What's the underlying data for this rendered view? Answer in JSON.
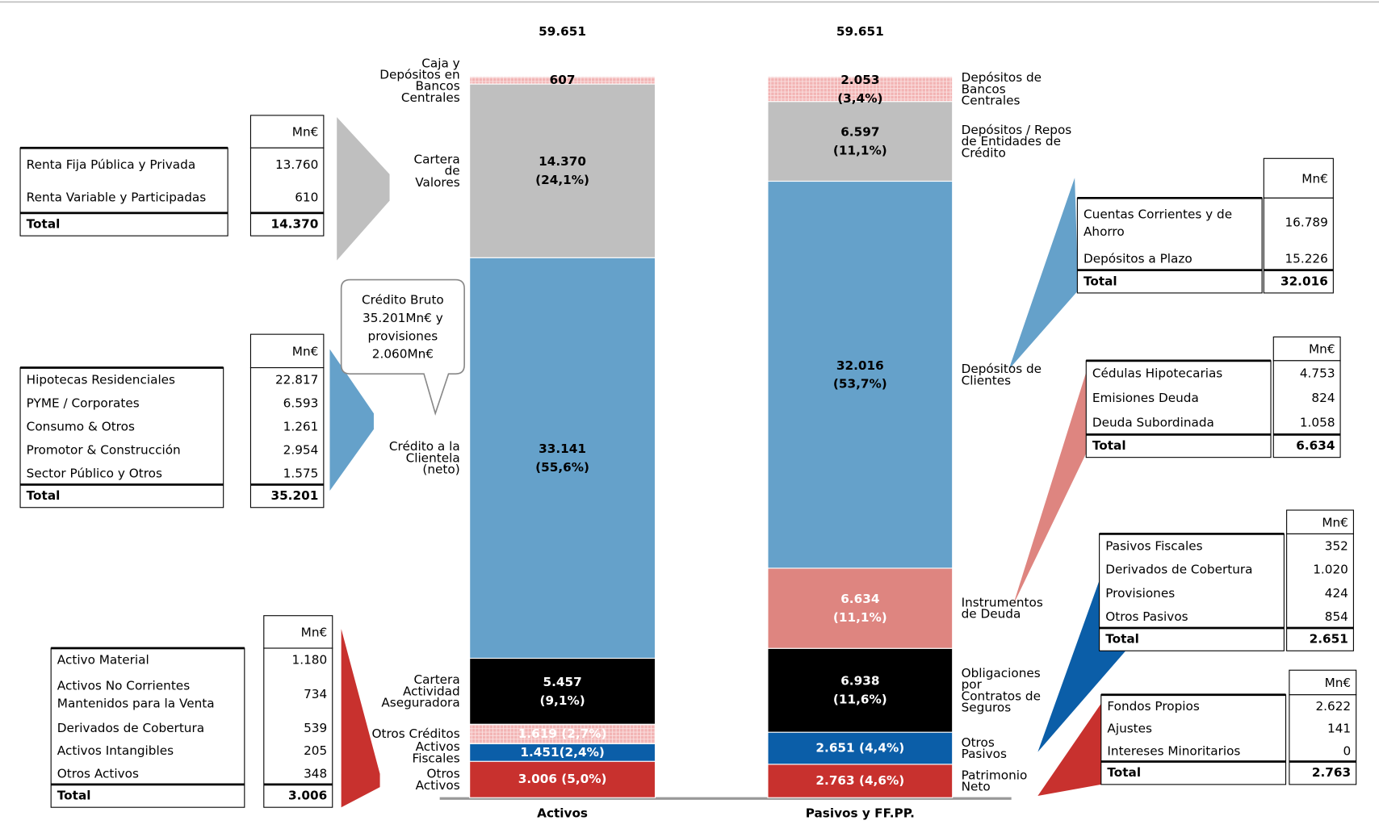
{
  "chart_data": {
    "type": "stacked-bar",
    "annotation": "Crédito Bruto\n35.201Mn€ y\nprovisiones\n2.060Mn€",
    "columns": [
      {
        "name": "Activos",
        "total": 59651,
        "total_label": "59.651",
        "segments": [
          {
            "name": "Otros\nActivos",
            "value": 3006,
            "value_label": "3.006 (5,0%)",
            "color": "#c8312e",
            "label_color": "#ffffff"
          },
          {
            "name": "Activos\nFiscales",
            "value": 1451,
            "value_label": "1.451(2,4%)",
            "color": "#0b5ea8",
            "label_color": "#ffffff"
          },
          {
            "name": "Otros Créditos",
            "value": 1619,
            "value_label": "1.619 (2,7%)",
            "color": "#f2b3b3",
            "pattern": "hatch",
            "label_color": "#ffffff"
          },
          {
            "name": "Cartera\nActividad\nAseguradora",
            "value": 5457,
            "value_label": "5.457\n(9,1%)",
            "color": "#000000",
            "label_color": "#ffffff"
          },
          {
            "name": "Crédito a la\nClientela\n(neto)",
            "value": 33141,
            "value_label": "33.141\n(55,6%)",
            "color": "#65a1ca",
            "label_color": "#000000"
          },
          {
            "name": "Cartera\nde\nValores",
            "value": 14370,
            "value_label": "14.370\n(24,1%)",
            "color": "#bfbfbf",
            "label_color": "#000000"
          },
          {
            "name": "Caja y\nDepósitos en\nBancos\nCentrales",
            "value": 607,
            "value_label": "607",
            "color": "#f2b3b3",
            "pattern": "hatch",
            "label_color": "#000000"
          }
        ]
      },
      {
        "name": "Pasivos y FF.PP.",
        "total": 59651,
        "total_label": "59.651",
        "segments": [
          {
            "name": "Patrimonio\nNeto",
            "value": 2763,
            "value_label": "2.763 (4,6%)",
            "color": "#c8312e",
            "label_color": "#ffffff"
          },
          {
            "name": "Otros\nPasivos",
            "value": 2651,
            "value_label": "2.651 (4,4%)",
            "color": "#0b5ea8",
            "label_color": "#ffffff"
          },
          {
            "name": "Obligaciones\npor\nContratos de\nSeguros",
            "value": 6938,
            "value_label": "6.938\n(11,6%)",
            "color": "#000000",
            "label_color": "#ffffff"
          },
          {
            "name": "Instrumentos\nde Deuda",
            "value": 6634,
            "value_label": "6.634\n(11,1%)",
            "color": "#de8580",
            "label_color": "#ffffff"
          },
          {
            "name": "Depósitos de\nClientes",
            "value": 32016,
            "value_label": "32.016\n(53,7%)",
            "color": "#65a1ca",
            "label_color": "#000000"
          },
          {
            "name": "Depósitos / Repos\nde Entidades de\nCrédito",
            "value": 6597,
            "value_label": "6.597\n(11,1%)",
            "color": "#bfbfbf",
            "label_color": "#000000"
          },
          {
            "name": "Depósitos de\nBancos\nCentrales",
            "value": 2053,
            "value_label": "2.053\n(3,4%)",
            "color": "#f2b3b3",
            "pattern": "hatch",
            "label_color": "#000000"
          }
        ]
      }
    ]
  },
  "tables": [
    {
      "unit": "Mn€",
      "rows": [
        [
          "Renta Fija Pública y Privada",
          "13.760"
        ],
        [
          "Renta Variable y Participadas",
          "610"
        ]
      ],
      "total": [
        "Total",
        "14.370"
      ]
    },
    {
      "unit": "Mn€",
      "rows": [
        [
          "Hipotecas Residenciales",
          "22.817"
        ],
        [
          "PYME / Corporates",
          "6.593"
        ],
        [
          "Consumo & Otros",
          "1.261"
        ],
        [
          "Promotor & Construcción",
          "2.954"
        ],
        [
          "Sector Público y Otros",
          "1.575"
        ]
      ],
      "total": [
        "Total",
        "35.201"
      ]
    },
    {
      "unit": "Mn€",
      "rows": [
        [
          "Activo Material",
          "1.180"
        ],
        [
          "Activos No Corrientes\nMantenidos para la Venta",
          "734"
        ],
        [
          "Derivados de Cobertura",
          "539"
        ],
        [
          "Activos Intangibles",
          "205"
        ],
        [
          "Otros Activos",
          "348"
        ]
      ],
      "total": [
        "Total",
        "3.006"
      ]
    },
    {
      "unit": "Mn€",
      "rows": [
        [
          "Cuentas Corrientes y de\nAhorro",
          "16.789"
        ],
        [
          "Depósitos a Plazo",
          "15.226"
        ]
      ],
      "total": [
        "Total",
        "32.016"
      ]
    },
    {
      "unit": "Mn€",
      "rows": [
        [
          "Cédulas Hipotecarias",
          "4.753"
        ],
        [
          "Emisiones Deuda",
          "824"
        ],
        [
          "Deuda Subordinada",
          "1.058"
        ]
      ],
      "total": [
        "Total",
        "6.634"
      ]
    },
    {
      "unit": "Mn€",
      "rows": [
        [
          "Pasivos Fiscales",
          "352"
        ],
        [
          "Derivados de Cobertura",
          "1.020"
        ],
        [
          "Provisiones",
          "424"
        ],
        [
          "Otros Pasivos",
          "854"
        ]
      ],
      "total": [
        "Total",
        "2.651"
      ]
    },
    {
      "unit": "Mn€",
      "rows": [
        [
          "Fondos Propios",
          "2.622"
        ],
        [
          "Ajustes",
          "141"
        ],
        [
          "Intereses Minoritarios",
          "0"
        ]
      ],
      "total": [
        "Total",
        "2.763"
      ]
    }
  ]
}
